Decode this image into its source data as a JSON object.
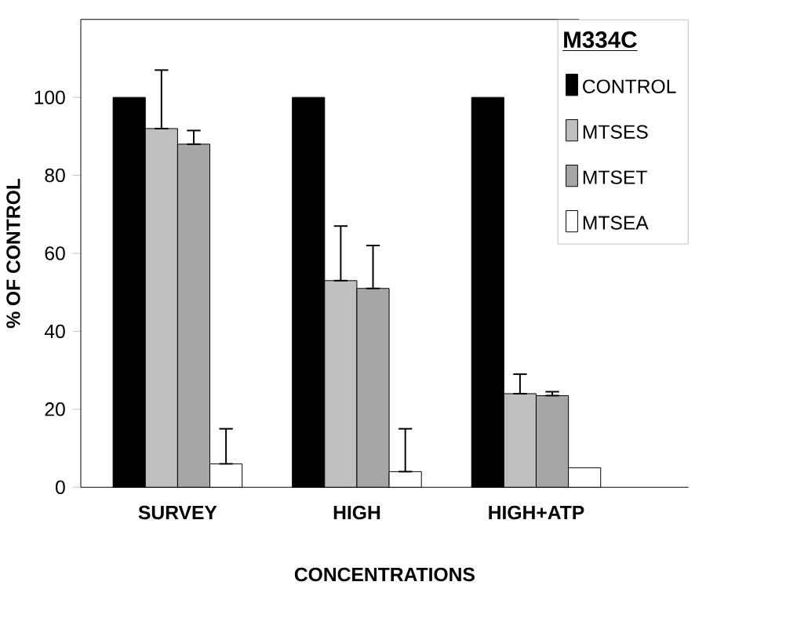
{
  "chart_data": {
    "type": "bar",
    "xlabel": "CONCENTRATIONS",
    "ylabel": "% OF CONTROL",
    "legend_title": "M334C",
    "categories": [
      "SURVEY",
      "HIGH",
      "HIGH+ATP"
    ],
    "series": [
      {
        "name": "CONTROL",
        "color": "#000000",
        "values": [
          100,
          100,
          100
        ]
      },
      {
        "name": "MTSES",
        "color": "#bfbfbf",
        "values": [
          92,
          53,
          24
        ],
        "errors": [
          [
            92,
            107
          ],
          [
            53,
            67
          ],
          [
            24,
            29
          ]
        ]
      },
      {
        "name": "MTSET",
        "color": "#a6a6a6",
        "values": [
          88,
          51,
          23.5
        ],
        "errors": [
          [
            88,
            91.5
          ],
          [
            51,
            62
          ],
          [
            23.5,
            24.5
          ]
        ]
      },
      {
        "name": "MTSEA",
        "color": "#ffffff",
        "values": [
          6,
          4,
          5
        ],
        "errors": [
          [
            6,
            15
          ],
          [
            4,
            15
          ],
          null
        ]
      }
    ],
    "ylim": [
      0,
      120
    ],
    "yticks": [
      0,
      20,
      40,
      60,
      80,
      100
    ],
    "legend": "top right"
  }
}
